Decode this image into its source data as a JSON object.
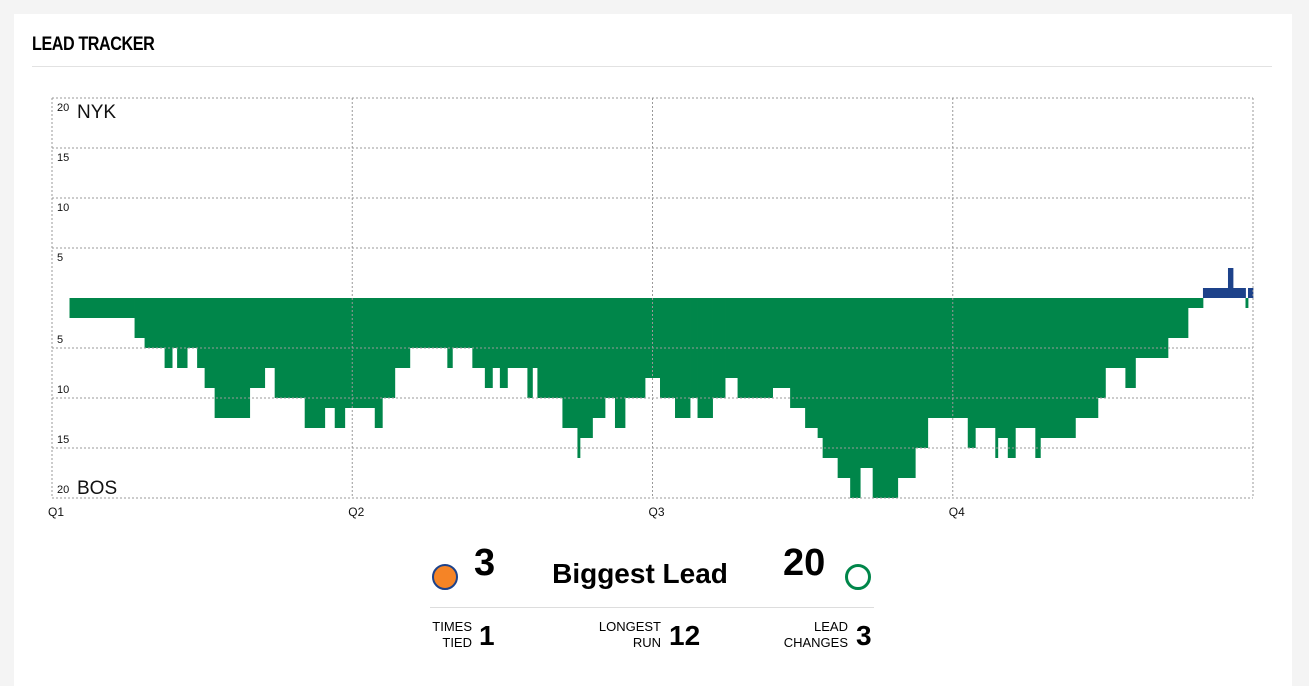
{
  "header": {
    "title": "LEAD TRACKER"
  },
  "chart_data": {
    "type": "step",
    "top_label": "NYK",
    "bottom_label": "BOS",
    "positive_color": "#1d428a",
    "negative_color": "#00864a",
    "xlim": [
      0,
      48
    ],
    "xticks": [
      {
        "value": 0,
        "label": "Q1"
      },
      {
        "value": 12,
        "label": "Q2"
      },
      {
        "value": 24,
        "label": "Q3"
      },
      {
        "value": 36,
        "label": "Q4"
      }
    ],
    "ylim": [
      -20,
      20
    ],
    "yticks": [
      20,
      15,
      10,
      5,
      {
        "value": -5,
        "label": "5"
      },
      {
        "value": -10,
        "label": "10"
      },
      {
        "value": -15,
        "label": "15"
      },
      {
        "value": -20,
        "label": "20"
      }
    ],
    "grid": true,
    "x": [
      0,
      0.7,
      3.3,
      3.7,
      4.5,
      4.8,
      5.0,
      5.4,
      5.8,
      6.1,
      6.5,
      7.9,
      8.5,
      8.9,
      10.1,
      10.9,
      11.3,
      11.7,
      12.9,
      13.2,
      13.7,
      14.3,
      15.8,
      16.0,
      16.8,
      17.3,
      17.6,
      17.9,
      18.2,
      19.0,
      19.2,
      19.4,
      20.4,
      21.0,
      21.1,
      21.6,
      22.1,
      22.5,
      22.9,
      23.7,
      24.3,
      24.9,
      25.5,
      25.8,
      26.4,
      26.9,
      27.4,
      28.8,
      29.5,
      30.1,
      30.6,
      30.8,
      31.4,
      31.9,
      32.3,
      32.8,
      33.8,
      34.5,
      35.0,
      36.6,
      36.9,
      37.7,
      37.8,
      38.2,
      38.5,
      39.3,
      39.5,
      40.9,
      41.8,
      42.1,
      42.9,
      43.3,
      44.6,
      45.4,
      46.0,
      47.0,
      47.2,
      47.7,
      47.8
    ],
    "values": [
      0,
      -2,
      -4,
      -5,
      -7,
      -5,
      -7,
      -5,
      -7,
      -9,
      -12,
      -9,
      -7,
      -10,
      -13,
      -11,
      -13,
      -11,
      -13,
      -10,
      -7,
      -5,
      -7,
      -5,
      -7,
      -9,
      -7,
      -9,
      -7,
      -10,
      -7,
      -10,
      -13,
      -16,
      -14,
      -12,
      -10,
      -13,
      -10,
      -8,
      -10,
      -12,
      -10,
      -12,
      -10,
      -8,
      -10,
      -9,
      -11,
      -13,
      -14,
      -16,
      -18,
      -20,
      -17,
      -20,
      -18,
      -15,
      -12,
      -15,
      -13,
      -16,
      -14,
      -16,
      -13,
      -16,
      -14,
      -12,
      -10,
      -7,
      -9,
      -6,
      -4,
      -1,
      1,
      3,
      1,
      -1,
      1
    ]
  },
  "stats": {
    "biggest_lead": {
      "label": "Biggest Lead",
      "NYK": 3,
      "BOS": 20
    },
    "times_tied": {
      "label": "TIMES TIED",
      "value": 1
    },
    "longest_run": {
      "label": "LONGEST RUN",
      "value": 12
    },
    "lead_changes": {
      "label": "LEAD CHANGES",
      "value": 3
    }
  }
}
